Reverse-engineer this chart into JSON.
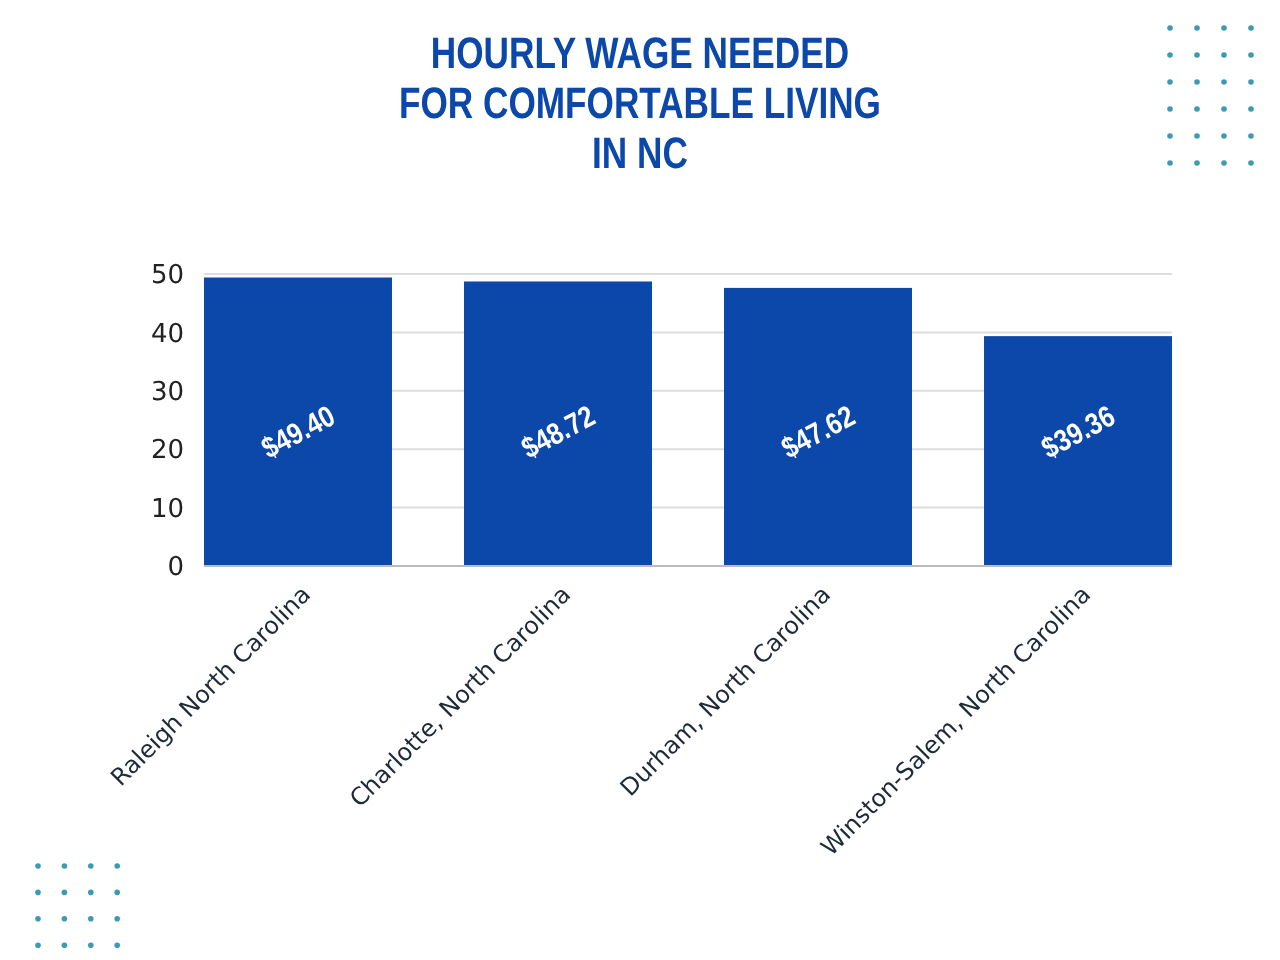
{
  "chart_data": {
    "type": "bar",
    "title": "HOURLY WAGE NEEDED\nFOR COMFORTABLE LIVING\nIN NC",
    "categories": [
      "Raleigh North Carolina",
      "Charlotte, North Carolina",
      "Durham, North Carolina",
      "Winston-Salem, North Carolina"
    ],
    "values": [
      49.4,
      48.72,
      47.62,
      39.36
    ],
    "color": "#0b48aa",
    "value_labels": [
      "$49.40",
      "$48.72",
      "$47.62",
      "$39.36"
    ],
    "ylim": [
      0,
      50
    ],
    "yticks": [
      0,
      10,
      20,
      30,
      40,
      50
    ],
    "grid": "y"
  }
}
